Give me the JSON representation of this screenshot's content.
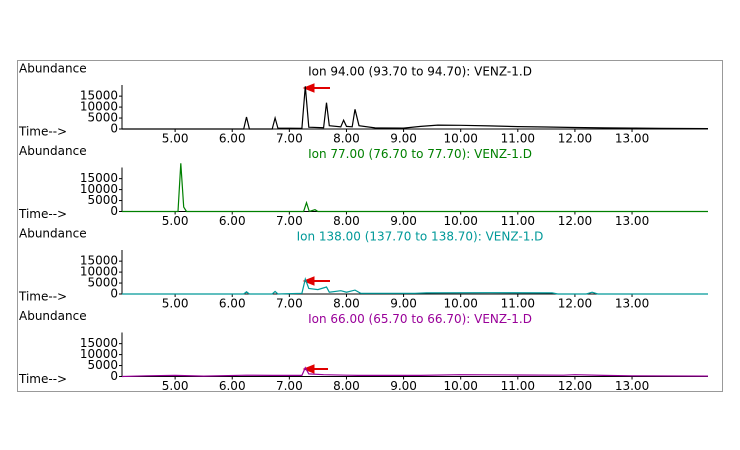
{
  "chart_data": [
    {
      "type": "line",
      "title": "Ion 94.00 (93.70 to 94.70): VENZ-1.D",
      "y_label": "Abundance",
      "x_label": "Time-->",
      "x": [
        4.07,
        6.2,
        6.25,
        6.3,
        6.7,
        6.75,
        6.8,
        7.22,
        7.28,
        7.34,
        7.6,
        7.65,
        7.7,
        7.9,
        7.95,
        8.0,
        8.1,
        8.15,
        8.22,
        8.5,
        9.0,
        9.3,
        9.6,
        10.0,
        10.5,
        11.0,
        11.5,
        12.0,
        12.5,
        13.0,
        13.5,
        14.33
      ],
      "series": [
        {
          "name": "Ion 94.00",
          "color": "#000000",
          "values": [
            0,
            0,
            5500,
            0,
            0,
            5000,
            400,
            300,
            19500,
            800,
            600,
            12000,
            1500,
            1000,
            4000,
            1200,
            1000,
            9000,
            1500,
            500,
            400,
            1200,
            1800,
            1700,
            1400,
            1100,
            900,
            700,
            500,
            400,
            300,
            200
          ]
        }
      ],
      "xlim": [
        4.07,
        14.33
      ],
      "ylim": [
        0,
        21000
      ],
      "xticks": [
        {
          "value": 5,
          "label": "5.00"
        },
        {
          "value": 6,
          "label": "6.00"
        },
        {
          "value": 7,
          "label": "7.00"
        },
        {
          "value": 8,
          "label": "8.00"
        },
        {
          "value": 9,
          "label": "9.00"
        },
        {
          "value": 10,
          "label": "10.00"
        },
        {
          "value": 11,
          "label": "11.00"
        },
        {
          "value": 12,
          "label": "12.00"
        },
        {
          "value": 13,
          "label": "13.00"
        }
      ],
      "yticks": [
        0,
        5000,
        10000,
        15000
      ]
    },
    {
      "type": "line",
      "title": "Ion 77.00 (76.70 to 77.70): VENZ-1.D",
      "y_label": "Abundance",
      "x_label": "Time-->",
      "x": [
        4.07,
        5.05,
        5.1,
        5.15,
        5.2,
        7.25,
        7.3,
        7.35,
        7.45,
        7.5,
        14.33
      ],
      "series": [
        {
          "name": "Ion 77.00",
          "color": "#008000",
          "values": [
            0,
            0,
            22000,
            2000,
            0,
            0,
            4000,
            0,
            800,
            0,
            0
          ]
        }
      ],
      "xlim": [
        4.07,
        14.33
      ],
      "ylim": [
        0,
        21000
      ],
      "xticks": [
        {
          "value": 5,
          "label": "5.00"
        },
        {
          "value": 6,
          "label": "6.00"
        },
        {
          "value": 7,
          "label": "7.00"
        },
        {
          "value": 8,
          "label": "8.00"
        },
        {
          "value": 9,
          "label": "9.00"
        },
        {
          "value": 10,
          "label": "10.00"
        },
        {
          "value": 11,
          "label": "11.00"
        },
        {
          "value": 12,
          "label": "12.00"
        },
        {
          "value": 13,
          "label": "13.00"
        }
      ],
      "yticks": [
        0,
        5000,
        10000,
        15000
      ]
    },
    {
      "type": "line",
      "title": "Ion 138.00 (137.70 to 138.70): VENZ-1.D",
      "y_label": "Abundance",
      "x_label": "Time-->",
      "x": [
        4.07,
        6.2,
        6.25,
        6.3,
        6.7,
        6.75,
        6.8,
        7.22,
        7.28,
        7.34,
        7.5,
        7.65,
        7.7,
        7.9,
        8.0,
        8.15,
        8.25,
        9.2,
        9.4,
        10.5,
        11.6,
        11.7,
        12.2,
        12.3,
        12.4,
        14.33
      ],
      "series": [
        {
          "name": "Ion 138.00",
          "color": "#009999",
          "values": [
            0,
            0,
            1000,
            0,
            0,
            1200,
            0,
            300,
            6800,
            2500,
            2000,
            3200,
            800,
            1500,
            800,
            1800,
            300,
            300,
            500,
            600,
            500,
            0,
            0,
            800,
            0,
            0
          ]
        }
      ],
      "xlim": [
        4.07,
        14.33
      ],
      "ylim": [
        0,
        21000
      ],
      "xticks": [
        {
          "value": 5,
          "label": "5.00"
        },
        {
          "value": 6,
          "label": "6.00"
        },
        {
          "value": 7,
          "label": "7.00"
        },
        {
          "value": 8,
          "label": "8.00"
        },
        {
          "value": 9,
          "label": "9.00"
        },
        {
          "value": 10,
          "label": "10.00"
        },
        {
          "value": 11,
          "label": "11.00"
        },
        {
          "value": 12,
          "label": "12.00"
        },
        {
          "value": 13,
          "label": "13.00"
        }
      ],
      "yticks": [
        0,
        5000,
        10000,
        15000
      ]
    },
    {
      "type": "line",
      "title": "Ion 66.00 (65.70 to 66.70): VENZ-1.D",
      "y_label": "Abundance",
      "x_label": "Time-->",
      "x": [
        4.07,
        4.5,
        5.0,
        5.5,
        6.25,
        6.7,
        7.22,
        7.28,
        7.34,
        7.6,
        8.0,
        8.2,
        9.3,
        10.0,
        11.0,
        11.8,
        12.0,
        12.5,
        13.0,
        14.33
      ],
      "series": [
        {
          "name": "Ion 66.00",
          "color": "#990099",
          "values": [
            0,
            300,
            500,
            200,
            600,
            500,
            500,
            4000,
            1200,
            800,
            600,
            500,
            500,
            800,
            700,
            600,
            800,
            500,
            300,
            200
          ]
        }
      ],
      "xlim": [
        4.07,
        14.33
      ],
      "ylim": [
        0,
        21000
      ],
      "xticks": [
        {
          "value": 5,
          "label": "5.00"
        },
        {
          "value": 6,
          "label": "6.00"
        },
        {
          "value": 7,
          "label": "7.00"
        },
        {
          "value": 8,
          "label": "8.00"
        },
        {
          "value": 9,
          "label": "9.00"
        },
        {
          "value": 10,
          "label": "10.00"
        },
        {
          "value": 11,
          "label": "11.00"
        },
        {
          "value": 12,
          "label": "12.00"
        },
        {
          "value": 13,
          "label": "13.00"
        }
      ],
      "yticks": [
        0,
        5000,
        10000,
        15000
      ]
    }
  ]
}
